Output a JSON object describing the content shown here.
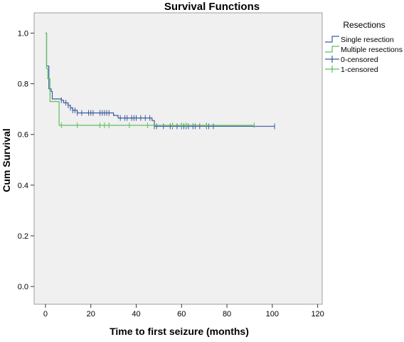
{
  "chart_data": {
    "type": "line",
    "title": "Survival Functions",
    "xlabel": "Time to first seizure (months)",
    "ylabel": "Cum Survival",
    "xlim": [
      -5,
      122
    ],
    "ylim": [
      -0.07,
      1.08
    ],
    "xticks": [
      0,
      20,
      40,
      60,
      80,
      100,
      120
    ],
    "yticks": [
      0.0,
      0.2,
      0.4,
      0.6,
      0.8,
      1.0
    ],
    "grid": false,
    "plot_background": "#f0f0f0",
    "legend": {
      "title": "Resections",
      "placement": "right",
      "entries": [
        {
          "label": "Single resection",
          "kind": "step",
          "color": "#3b5a9d"
        },
        {
          "label": "Multiple resections",
          "kind": "step",
          "color": "#5cbf5c"
        },
        {
          "label": "0-censored",
          "kind": "censor",
          "color": "#3b5a9d"
        },
        {
          "label": "1-censored",
          "kind": "censor",
          "color": "#5cbf5c"
        }
      ]
    },
    "series": [
      {
        "name": "Single resection",
        "color": "#3b5a9d",
        "steps": [
          [
            0,
            1.0
          ],
          [
            0.5,
            0.87
          ],
          [
            1.5,
            0.78
          ],
          [
            2.5,
            0.77
          ],
          [
            3,
            0.74
          ],
          [
            7,
            0.735
          ],
          [
            8,
            0.725
          ],
          [
            10,
            0.715
          ],
          [
            11,
            0.705
          ],
          [
            12,
            0.695
          ],
          [
            14,
            0.685
          ],
          [
            30,
            0.675
          ],
          [
            32,
            0.665
          ],
          [
            47,
            0.655
          ],
          [
            48,
            0.632
          ],
          [
            101,
            0.632
          ]
        ],
        "censored": [
          [
            7,
            0.735
          ],
          [
            9,
            0.725
          ],
          [
            10,
            0.715
          ],
          [
            11,
            0.705
          ],
          [
            12,
            0.695
          ],
          [
            13,
            0.695
          ],
          [
            14,
            0.685
          ],
          [
            16,
            0.685
          ],
          [
            19,
            0.685
          ],
          [
            20,
            0.685
          ],
          [
            21,
            0.685
          ],
          [
            24,
            0.685
          ],
          [
            25,
            0.685
          ],
          [
            26,
            0.685
          ],
          [
            27,
            0.685
          ],
          [
            28,
            0.685
          ],
          [
            33,
            0.665
          ],
          [
            35,
            0.665
          ],
          [
            36,
            0.665
          ],
          [
            38,
            0.665
          ],
          [
            39,
            0.665
          ],
          [
            40,
            0.665
          ],
          [
            42,
            0.665
          ],
          [
            44,
            0.665
          ],
          [
            46,
            0.665
          ],
          [
            48,
            0.632
          ],
          [
            49,
            0.632
          ],
          [
            52,
            0.632
          ],
          [
            55,
            0.632
          ],
          [
            56,
            0.632
          ],
          [
            58,
            0.632
          ],
          [
            60,
            0.632
          ],
          [
            61,
            0.632
          ],
          [
            62,
            0.632
          ],
          [
            63,
            0.632
          ],
          [
            65,
            0.632
          ],
          [
            66,
            0.632
          ],
          [
            68,
            0.632
          ],
          [
            71,
            0.632
          ],
          [
            72,
            0.632
          ],
          [
            74,
            0.632
          ],
          [
            101,
            0.632
          ]
        ]
      },
      {
        "name": "Multiple resections",
        "color": "#5cbf5c",
        "steps": [
          [
            0,
            1.0
          ],
          [
            0.5,
            0.86
          ],
          [
            1,
            0.82
          ],
          [
            2,
            0.73
          ],
          [
            6,
            0.636
          ],
          [
            92,
            0.636
          ]
        ],
        "censored": [
          [
            7,
            0.636
          ],
          [
            14,
            0.636
          ],
          [
            24,
            0.636
          ],
          [
            26,
            0.636
          ],
          [
            28,
            0.636
          ],
          [
            37,
            0.636
          ],
          [
            45,
            0.636
          ],
          [
            56,
            0.636
          ],
          [
            60,
            0.636
          ],
          [
            62,
            0.636
          ],
          [
            71,
            0.636
          ],
          [
            92,
            0.636
          ]
        ]
      }
    ]
  }
}
